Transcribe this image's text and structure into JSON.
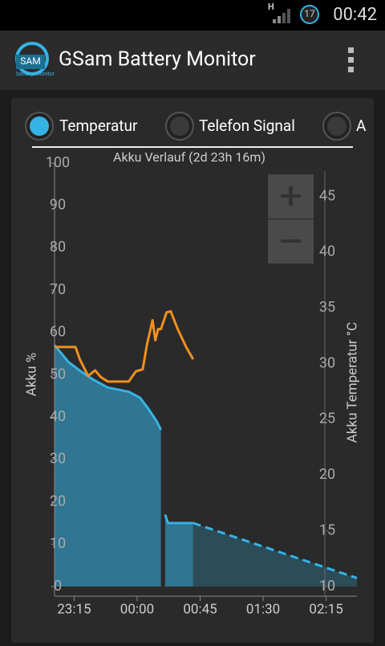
{
  "status_bar": {
    "network": "H",
    "badge": "17",
    "time": "00:42"
  },
  "app_bar": {
    "logo_text": "SAM",
    "logo_subtitle": "battery monitor",
    "title": "GSam Battery Monitor"
  },
  "tabs": [
    "Temperatur",
    "Telefon Signal",
    "A"
  ],
  "chart_data": {
    "type": "line",
    "title": "Akku Verlauf (2d 23h 16m)",
    "y_label": "Akku %",
    "y2_label": "Akku Temperatur °C",
    "xlim": [
      "23:01",
      "02:37"
    ],
    "xticks": [
      "23:15",
      "00:00",
      "00:45",
      "01:30",
      "02:15"
    ],
    "ylim": [
      0,
      100
    ],
    "yticks": [
      0,
      10,
      20,
      30,
      40,
      50,
      60,
      70,
      80,
      90,
      100
    ],
    "y2lim": [
      10,
      48
    ],
    "y2ticks": [
      10,
      15,
      20,
      25,
      30,
      35,
      40,
      45
    ],
    "series": [
      {
        "color": "#35b3e5",
        "area": true,
        "x": [
          "23:01",
          "23:11",
          "23:19",
          "23:28",
          "23:39",
          "23:54",
          "00:02",
          "00:08",
          "00:14",
          "00:17",
          "00:19",
          "00:20",
          "00:22",
          "00:40"
        ],
        "values": [
          57,
          53,
          51,
          49,
          47,
          46,
          44.6,
          42,
          39,
          37,
          null,
          17,
          15,
          15
        ]
      },
      {
        "color": "#35b3e5",
        "area": true,
        "dashed": true,
        "x": [
          "00:40",
          "02:37"
        ],
        "values": [
          15,
          2
        ]
      },
      {
        "color": "#f0901e",
        "axis": "y2",
        "x": [
          "23:01",
          "23:16",
          "23:19",
          "23:25",
          "23:30",
          "23:34",
          "23:39",
          "23:54",
          "23:59",
          "00:04",
          "00:07",
          "00:11",
          "00:13",
          "00:15",
          "00:17",
          "00:21",
          "00:24",
          "00:29",
          "00:35",
          "00:40"
        ],
        "values": [
          31.5,
          31.5,
          30.4,
          28.9,
          29.4,
          28.8,
          28.4,
          28.4,
          29.3,
          29.5,
          31.7,
          33.9,
          32.1,
          33.1,
          33.1,
          34.6,
          34.7,
          33.1,
          31.5,
          30.4
        ]
      }
    ]
  }
}
